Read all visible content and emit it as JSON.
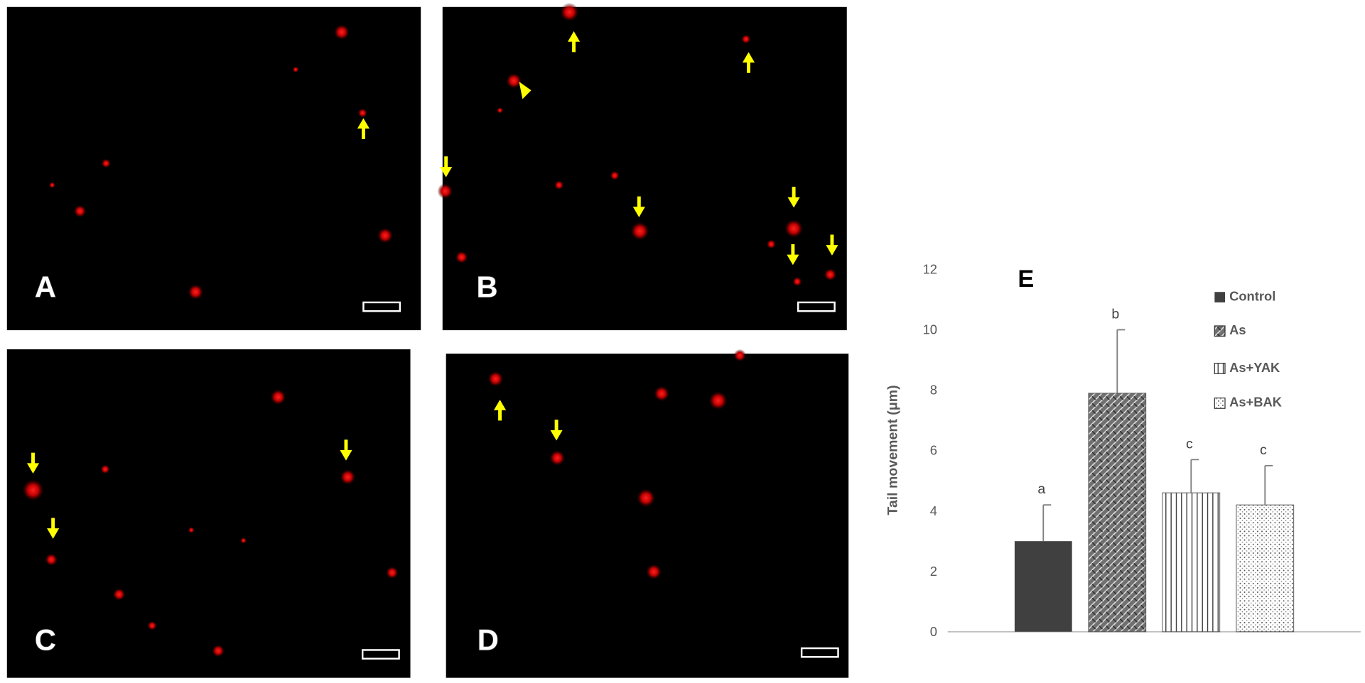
{
  "panels": [
    {
      "label": "A"
    },
    {
      "label": "B"
    },
    {
      "label": "C"
    },
    {
      "label": "D"
    }
  ],
  "chart_data": {
    "type": "bar",
    "title": "E",
    "ylabel": "Tail movement (μm)",
    "categories": [
      "Control",
      "As",
      "As+YAK",
      "As+BAK"
    ],
    "values": [
      3,
      7.9,
      4.6,
      4.2
    ],
    "errors": [
      1.2,
      2.1,
      1.1,
      1.3
    ],
    "annotations": [
      "a",
      "b",
      "c",
      "c"
    ],
    "patterns": [
      "solid",
      "weave",
      "vertical",
      "dots"
    ],
    "color": "#404040",
    "ylim": [
      0,
      12
    ],
    "yticks": [
      0,
      2,
      4,
      6,
      8,
      10,
      12
    ],
    "grid": false
  }
}
